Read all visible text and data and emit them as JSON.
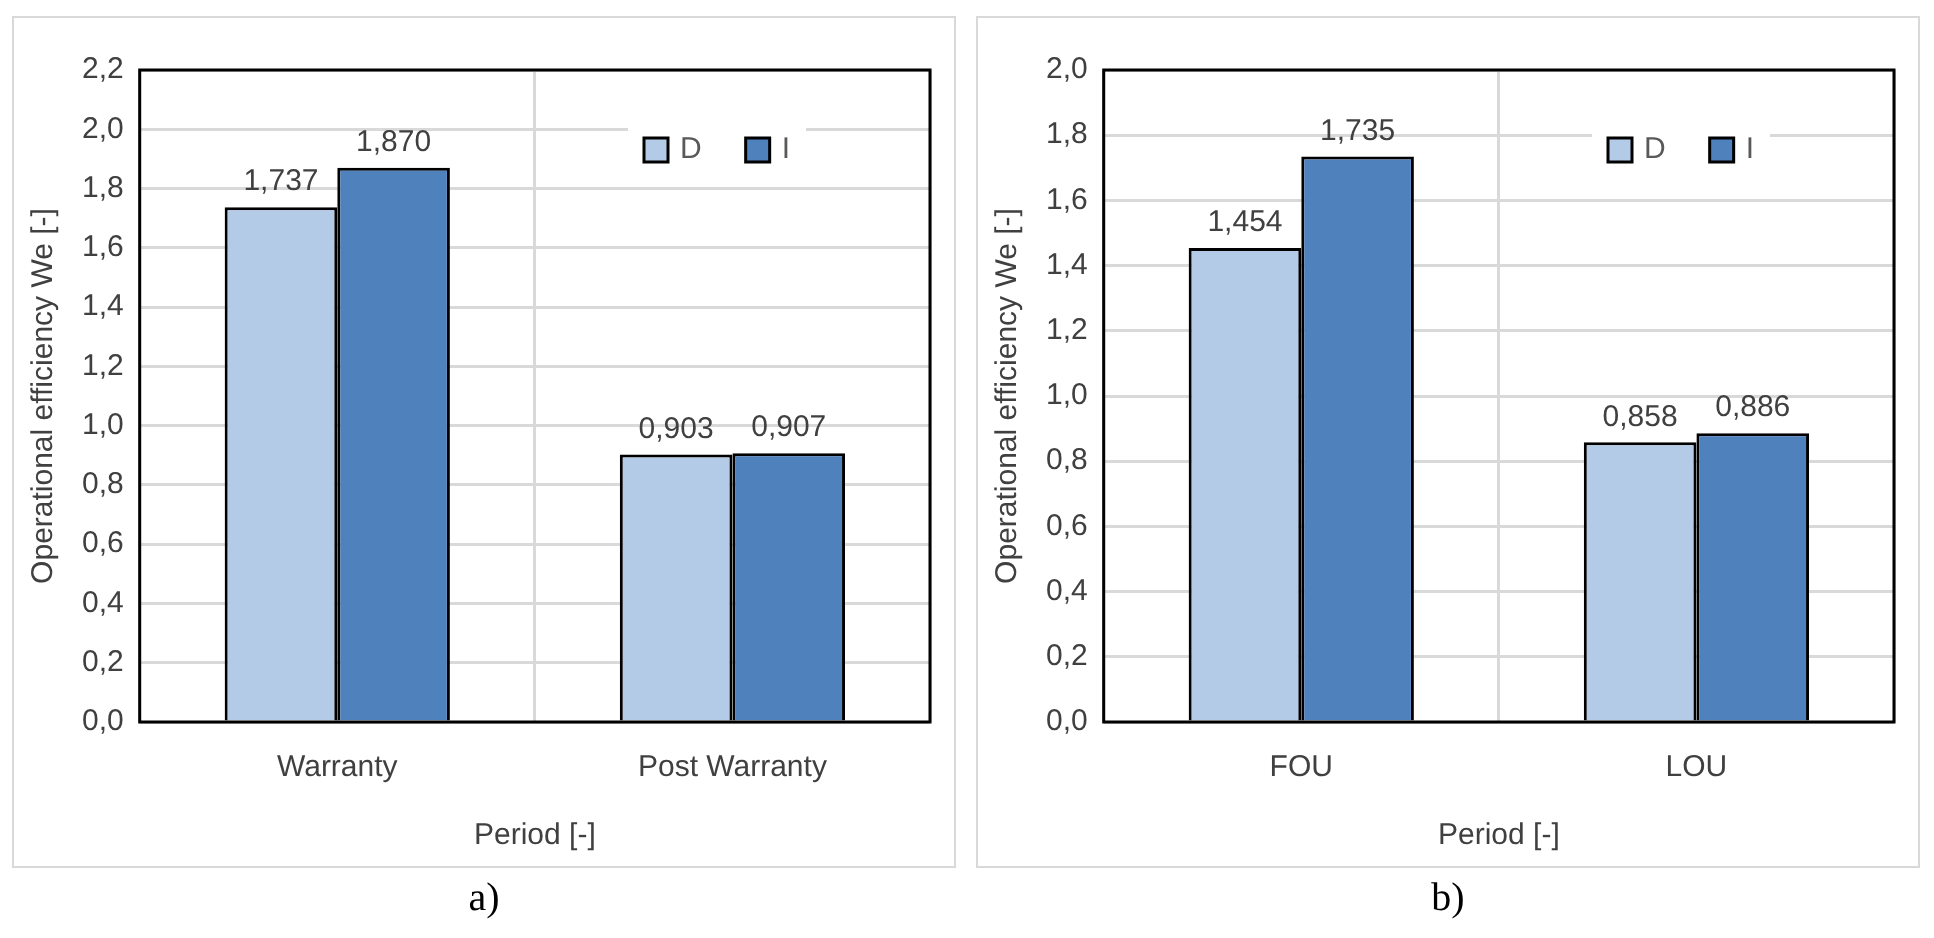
{
  "chart_data": [
    {
      "type": "bar",
      "xlabel": "Period [-]",
      "ylabel": "Operational efficiency We [-]",
      "categories": [
        "Warranty",
        "Post Warranty"
      ],
      "series": [
        {
          "name": "D",
          "color": "#b4cbe8",
          "values": [
            1.737,
            0.903
          ],
          "value_labels": [
            "1,737",
            "0,903"
          ]
        },
        {
          "name": "I",
          "color": "#4f81bd",
          "values": [
            1.87,
            0.907
          ],
          "value_labels": [
            "1,870",
            "0,907"
          ]
        }
      ],
      "ylim": [
        0,
        2.2
      ],
      "yticks": [
        {
          "value": 0,
          "label": "0,0"
        },
        {
          "value": 0.2,
          "label": "0,2"
        },
        {
          "value": 0.4,
          "label": "0,4"
        },
        {
          "value": 0.6,
          "label": "0,6"
        },
        {
          "value": 0.8,
          "label": "0,8"
        },
        {
          "value": 1.0,
          "label": "1,0"
        },
        {
          "value": 1.2,
          "label": "1,2"
        },
        {
          "value": 1.4,
          "label": "1,4"
        },
        {
          "value": 1.6,
          "label": "1,6"
        },
        {
          "value": 1.8,
          "label": "1,8"
        },
        {
          "value": 2.0,
          "label": "2,0"
        },
        {
          "value": 2.2,
          "label": "2,2"
        }
      ],
      "grid": true,
      "legend": "top right",
      "annotations": [
        "a)"
      ]
    },
    {
      "type": "bar",
      "xlabel": "Period [-]",
      "ylabel": "Operational efficiency We [-]",
      "categories": [
        "FOU",
        "LOU"
      ],
      "series": [
        {
          "name": "D",
          "color": "#b4cbe8",
          "values": [
            1.454,
            0.858
          ],
          "value_labels": [
            "1,454",
            "0,858"
          ]
        },
        {
          "name": "I",
          "color": "#4f81bd",
          "values": [
            1.735,
            0.886
          ],
          "value_labels": [
            "1,735",
            "0,886"
          ]
        }
      ],
      "ylim": [
        0,
        2.0
      ],
      "yticks": [
        {
          "value": 0,
          "label": "0,0"
        },
        {
          "value": 0.2,
          "label": "0,2"
        },
        {
          "value": 0.4,
          "label": "0,4"
        },
        {
          "value": 0.6,
          "label": "0,6"
        },
        {
          "value": 0.8,
          "label": "0,8"
        },
        {
          "value": 1.0,
          "label": "1,0"
        },
        {
          "value": 1.2,
          "label": "1,2"
        },
        {
          "value": 1.4,
          "label": "1,4"
        },
        {
          "value": 1.6,
          "label": "1,6"
        },
        {
          "value": 1.8,
          "label": "1,8"
        },
        {
          "value": 2.0,
          "label": "2,0"
        }
      ],
      "grid": true,
      "legend": "top right",
      "annotations": [
        "b)"
      ]
    }
  ]
}
